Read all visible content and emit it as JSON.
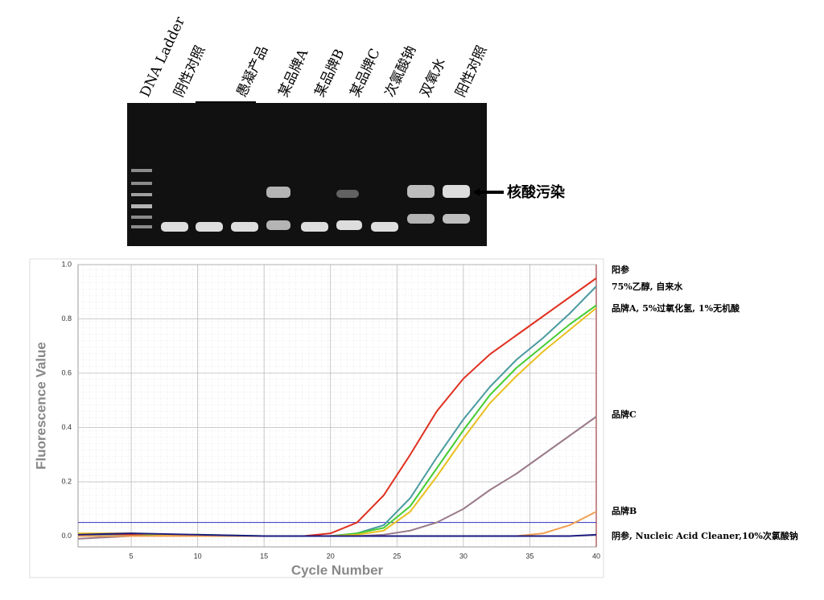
{
  "gel": {
    "lanes": [
      "DNA Ladder",
      "阴性对照",
      "愚凝产品",
      "某品牌A",
      "某品牌B",
      "某品牌C",
      "次氯酸钠",
      "双氧水",
      "阳性对照"
    ],
    "annotation": "核酸污染"
  },
  "chart_data": {
    "type": "line",
    "x_label": "Cycle Number",
    "y_label": "Fluorescence Value",
    "x": [
      1,
      5,
      10,
      15,
      18,
      20,
      22,
      24,
      26,
      28,
      30,
      32,
      34,
      36,
      38,
      40
    ],
    "series": [
      {
        "name": "阳参",
        "color": "#e03020",
        "values": [
          0.0,
          0.005,
          0.0,
          0.0,
          0.0,
          0.01,
          0.05,
          0.15,
          0.3,
          0.46,
          0.58,
          0.67,
          0.74,
          0.81,
          0.88,
          0.95
        ]
      },
      {
        "name": "75%乙醇, 自来水",
        "color": "#4a9aa0",
        "values": [
          0.005,
          0.0,
          0.0,
          0.0,
          0.0,
          0.0,
          0.01,
          0.04,
          0.14,
          0.29,
          0.43,
          0.55,
          0.65,
          0.73,
          0.82,
          0.92
        ]
      },
      {
        "name": "品牌A, 5%过氧化氢, 1%无机酸",
        "color": "#44cc33",
        "values": [
          0.0,
          0.0,
          0.005,
          0.0,
          0.0,
          0.0,
          0.01,
          0.03,
          0.11,
          0.25,
          0.39,
          0.52,
          0.62,
          0.7,
          0.78,
          0.85
        ]
      },
      {
        "color": "#e8c020",
        "values": [
          0.01,
          0.01,
          0.0,
          0.0,
          0.0,
          0.0,
          0.005,
          0.02,
          0.09,
          0.22,
          0.36,
          0.49,
          0.59,
          0.68,
          0.76,
          0.84
        ]
      },
      {
        "name": "品牌C",
        "color": "#9a7a8a",
        "values": [
          -0.01,
          0.0,
          0.0,
          0.0,
          0.0,
          0.0,
          0.0,
          0.005,
          0.02,
          0.05,
          0.1,
          0.17,
          0.23,
          0.3,
          0.37,
          0.44
        ]
      },
      {
        "name": "品牌B",
        "color": "#f0a050",
        "values": [
          0.0,
          0.0,
          0.0,
          0.0,
          0.0,
          0.0,
          0.0,
          0.0,
          0.0,
          0.0,
          0.0,
          0.0,
          0.0,
          0.01,
          0.04,
          0.09
        ]
      },
      {
        "name": "阴参, Nucleic Acid Cleaner,10%次氯酸钠",
        "color": "#1a1a80",
        "values": [
          0.005,
          0.01,
          0.005,
          0.0,
          0.0,
          0.0,
          0.0,
          0.0,
          0.0,
          0.0,
          0.0,
          0.0,
          0.0,
          0.0,
          0.0,
          0.005
        ]
      }
    ],
    "threshold": 0.05,
    "xlim": [
      1,
      40
    ],
    "xticks": [
      5,
      10,
      15,
      20,
      25,
      30,
      35,
      40
    ],
    "ylim": [
      -0.04,
      1.0
    ],
    "yticks": [
      {
        "value": 0,
        "label": "0.0"
      },
      0.2,
      0.4,
      0.6,
      0.8,
      {
        "value": 1,
        "label": "1.0"
      }
    ],
    "grid": true
  }
}
